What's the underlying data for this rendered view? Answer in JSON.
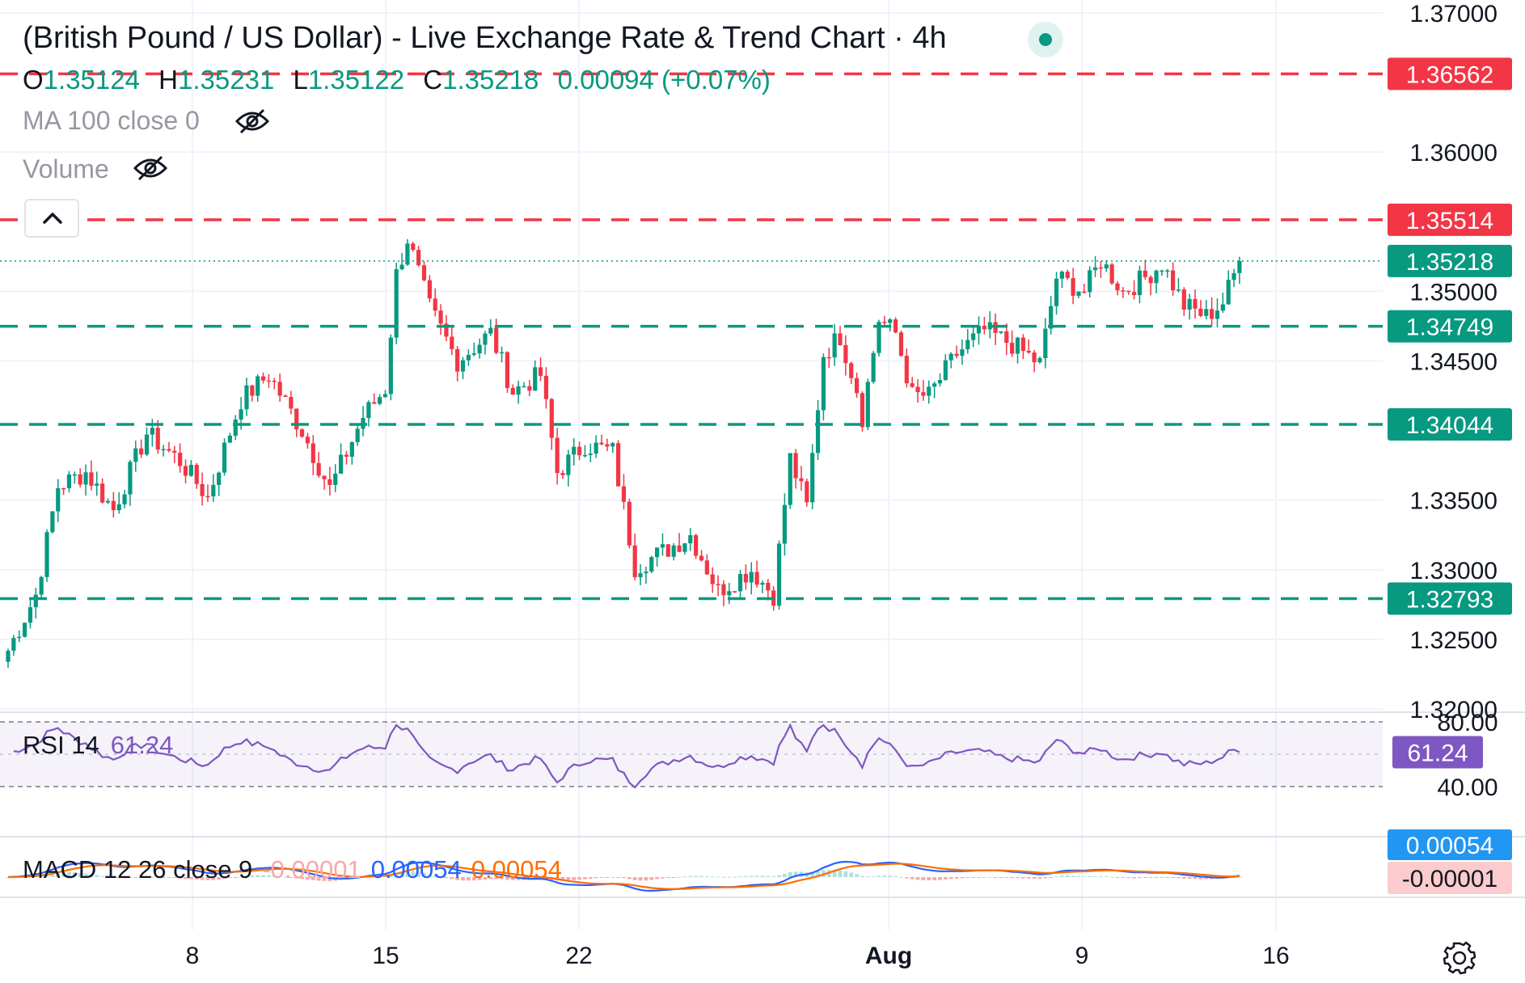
{
  "header": {
    "title": "(British Pound / US Dollar) - Live Exchange Rate & Trend Chart · 4h",
    "ohlc": {
      "o_label": "O",
      "o_value": "1.35124",
      "h_label": "H",
      "h_value": "1.35231",
      "l_label": "L",
      "l_value": "1.35122",
      "c_label": "C",
      "c_value": "1.35218",
      "change": "0.00094 (+0.07%)"
    },
    "ma_label": "MA 100 close 0",
    "volume_label": "Volume"
  },
  "indicators": {
    "rsi": {
      "label": "RSI 14",
      "value": "61.24"
    },
    "macd": {
      "label": "MACD 12 26 close 9",
      "hist_value": "-0.00001",
      "macd_value": "0.00054",
      "signal_value": "0.00054"
    }
  },
  "icons": {
    "status": "market-status-dot",
    "hide": "eye-crossed-icon",
    "collapse": "chevron-up-icon",
    "settings": "gear-icon"
  },
  "colors": {
    "up": "#089981",
    "down": "#f23645",
    "rsi": "#7e57c2",
    "macd": "#2962ff",
    "signal": "#ff6d00",
    "hist_up": "#b2dfdb",
    "hist_down": "#f7a9a7"
  },
  "chart_data": {
    "type": "candlestick",
    "timeframe": "4h",
    "x_ticks": [
      "8",
      "15",
      "22",
      "Aug",
      "9",
      "16"
    ],
    "y_ticks": [
      "1.37000",
      "1.36000",
      "1.35000",
      "1.34500",
      "1.33500",
      "1.33000",
      "1.32500",
      "1.32000"
    ],
    "ylim": [
      1.32,
      1.37
    ],
    "last_price": 1.35218,
    "levels": [
      {
        "value": 1.36562,
        "label": "1.36562",
        "kind": "resistance"
      },
      {
        "value": 1.35514,
        "label": "1.35514",
        "kind": "resistance"
      },
      {
        "value": 1.34749,
        "label": "1.34749",
        "kind": "support"
      },
      {
        "value": 1.34044,
        "label": "1.34044",
        "kind": "support"
      },
      {
        "value": 1.32793,
        "label": "1.32793",
        "kind": "support"
      }
    ],
    "anchors": [
      {
        "t": 0,
        "p": 1.3242
      },
      {
        "t": 5,
        "p": 1.3282
      },
      {
        "t": 9,
        "p": 1.336
      },
      {
        "t": 14,
        "p": 1.337
      },
      {
        "t": 19,
        "p": 1.3343
      },
      {
        "t": 25,
        "p": 1.3398
      },
      {
        "t": 31,
        "p": 1.3378
      },
      {
        "t": 36,
        "p": 1.3352
      },
      {
        "t": 42,
        "p": 1.3422
      },
      {
        "t": 47,
        "p": 1.344
      },
      {
        "t": 53,
        "p": 1.34
      },
      {
        "t": 58,
        "p": 1.3358
      },
      {
        "t": 64,
        "p": 1.341
      },
      {
        "t": 68,
        "p": 1.343
      },
      {
        "t": 70,
        "p": 1.3512
      },
      {
        "t": 72,
        "p": 1.3538
      },
      {
        "t": 76,
        "p": 1.3488
      },
      {
        "t": 81,
        "p": 1.345
      },
      {
        "t": 87,
        "p": 1.347
      },
      {
        "t": 91,
        "p": 1.3428
      },
      {
        "t": 96,
        "p": 1.344
      },
      {
        "t": 99,
        "p": 1.337
      },
      {
        "t": 104,
        "p": 1.339
      },
      {
        "t": 109,
        "p": 1.3385
      },
      {
        "t": 113,
        "p": 1.3302
      },
      {
        "t": 119,
        "p": 1.3315
      },
      {
        "t": 123,
        "p": 1.3325
      },
      {
        "t": 128,
        "p": 1.3285
      },
      {
        "t": 134,
        "p": 1.33
      },
      {
        "t": 138,
        "p": 1.3282
      },
      {
        "t": 141,
        "p": 1.338
      },
      {
        "t": 144,
        "p": 1.3345
      },
      {
        "t": 147,
        "p": 1.3455
      },
      {
        "t": 150,
        "p": 1.3468
      },
      {
        "t": 153,
        "p": 1.343
      },
      {
        "t": 154,
        "p": 1.341
      },
      {
        "t": 157,
        "p": 1.348
      },
      {
        "t": 160,
        "p": 1.347
      },
      {
        "t": 163,
        "p": 1.3425
      },
      {
        "t": 166,
        "p": 1.3425
      },
      {
        "t": 171,
        "p": 1.3455
      },
      {
        "t": 176,
        "p": 1.3472
      },
      {
        "t": 181,
        "p": 1.3462
      },
      {
        "t": 186,
        "p": 1.3448
      },
      {
        "t": 189,
        "p": 1.351
      },
      {
        "t": 194,
        "p": 1.35
      },
      {
        "t": 197,
        "p": 1.3522
      },
      {
        "t": 201,
        "p": 1.35
      },
      {
        "t": 205,
        "p": 1.351
      },
      {
        "t": 208,
        "p": 1.352
      },
      {
        "t": 212,
        "p": 1.349
      },
      {
        "t": 216,
        "p": 1.3482
      },
      {
        "t": 219,
        "p": 1.3492
      },
      {
        "t": 222,
        "p": 1.3522
      }
    ],
    "candle_count": 223,
    "rsi_ylim": [
      30,
      90
    ],
    "rsi_bands": [
      80,
      40
    ],
    "rsi_axis_ticks": [
      "80.00",
      "40.00"
    ],
    "rsi_last": 61.24,
    "macd_labels": [
      "0.00054",
      "-0.00001"
    ]
  }
}
